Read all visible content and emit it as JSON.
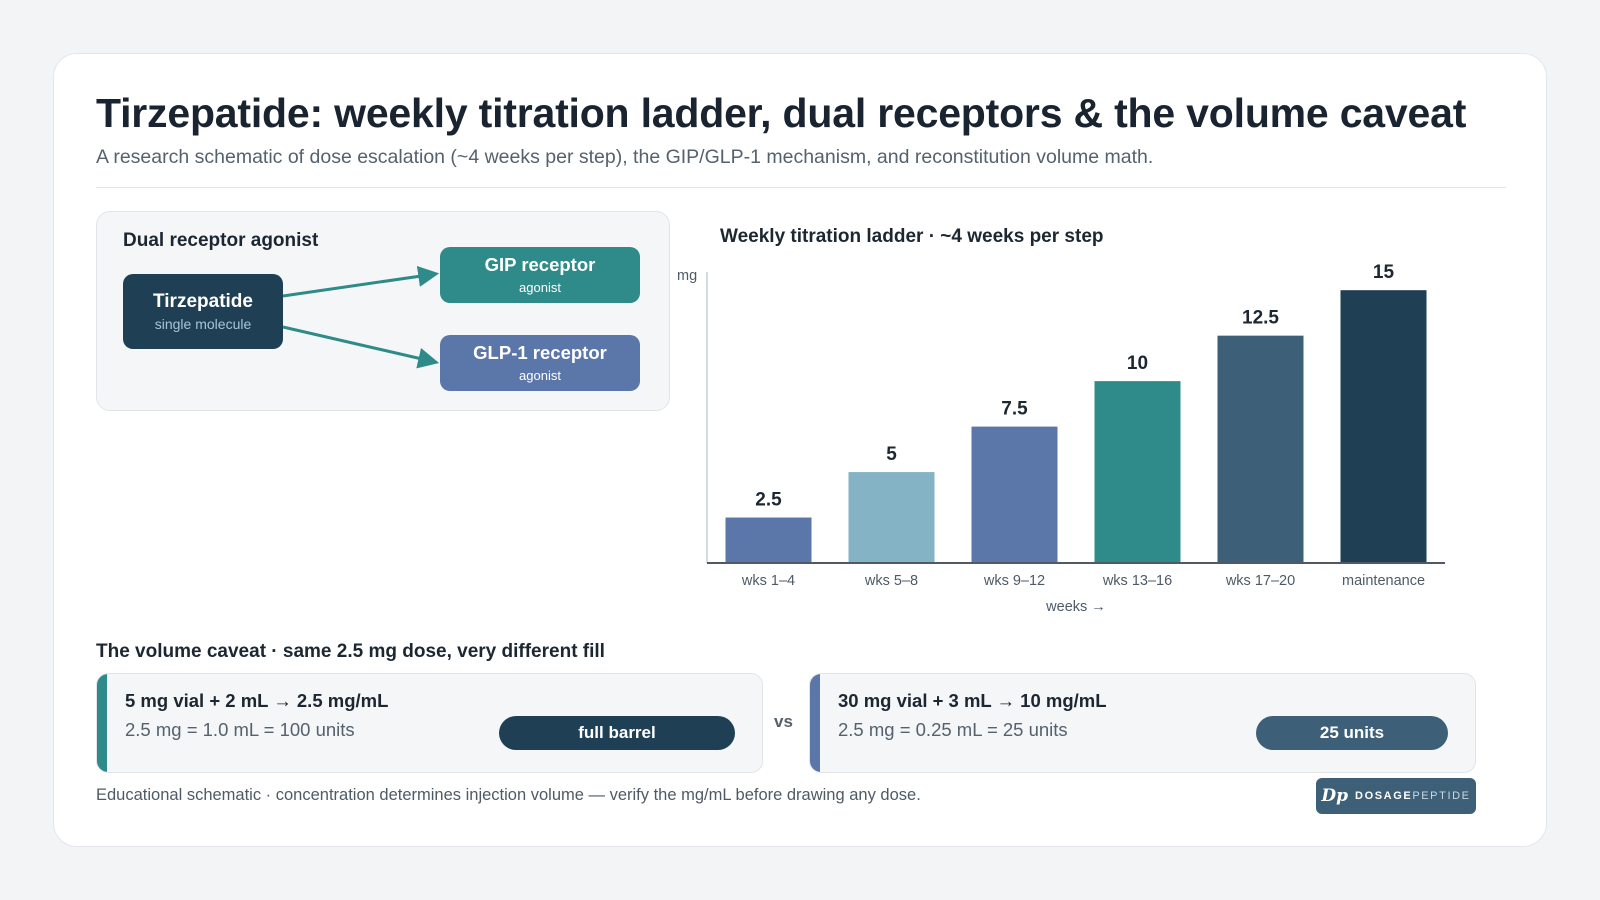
{
  "header": {
    "title": "Tirzepatide: weekly titration ladder, dual receptors & the volume caveat",
    "subtitle": "A research schematic of dose escalation (~4 weeks per step), the GIP/GLP-1 mechanism, and reconstitution volume math."
  },
  "mechanism": {
    "heading": "Dual receptor agonist",
    "source": {
      "title": "Tirzepatide",
      "subtitle": "single molecule",
      "color": "#1f3f55"
    },
    "targets": [
      {
        "title": "GIP receptor",
        "subtitle": "agonist",
        "color": "#2e8b8a"
      },
      {
        "title": "GLP-1 receptor",
        "subtitle": "agonist",
        "color": "#5b76a8"
      }
    ],
    "arrow_color": "#2e8b8a",
    "arrow_icon": "arrow-right-icon"
  },
  "chart_data": {
    "type": "bar",
    "title": "Weekly titration ladder · ~4 weeks per step",
    "ylabel": "mg",
    "xlabel": "weeks →",
    "categories": [
      "wks 1–4",
      "wks 5–8",
      "wks 9–12",
      "wks 13–16",
      "wks 17–20",
      "maintenance"
    ],
    "values": [
      2.5,
      5,
      7.5,
      10,
      12.5,
      15
    ],
    "value_labels": [
      "2.5",
      "5",
      "7.5",
      "10",
      "12.5",
      "15"
    ],
    "bar_colors": [
      "#5b76a8",
      "#84b3c5",
      "#5b76a8",
      "#2e8b8a",
      "#3d5f78",
      "#1f3f55"
    ],
    "ylim": [
      0,
      16
    ],
    "grid": false,
    "legend": "none"
  },
  "volume": {
    "heading": "The volume caveat · same 2.5 mg dose, very different fill",
    "vs_label": "vs",
    "cards": [
      {
        "title": "5 mg vial + 2 mL → 2.5 mg/mL",
        "math": "2.5 mg = 1.0 mL = 100 units",
        "pill": "full barrel",
        "stripe_color": "#2e8b8a",
        "pill_color": "#1f3f55",
        "fill_fraction": 1.0
      },
      {
        "title": "30 mg vial + 3 mL → 10 mg/mL",
        "math": "2.5 mg = 0.25 mL = 25 units",
        "pill": "25 units",
        "stripe_color": "#5b76a8",
        "pill_color": "#3d5f78",
        "fill_fraction": 0.25
      }
    ]
  },
  "footer": {
    "note": "Educational schematic · concentration determines injection volume — verify the mg/mL before drawing any dose.",
    "brand_mark": "Dp",
    "brand_word_bold": "DOSAGE",
    "brand_word_light": "PEPTIDE",
    "brand_icon": "dosagepeptide-logo-icon"
  }
}
